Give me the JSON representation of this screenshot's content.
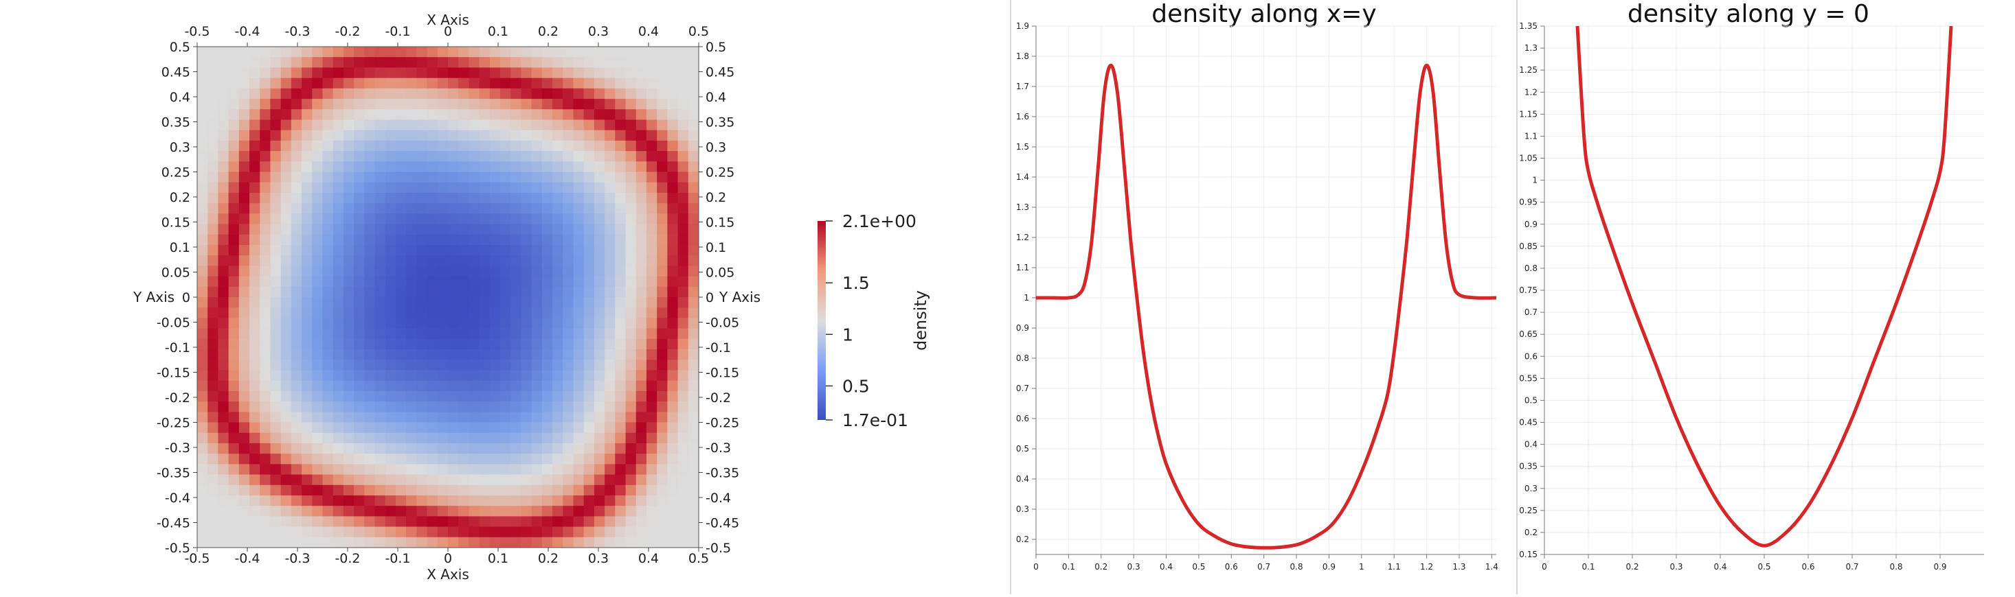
{
  "chart_data": [
    {
      "type": "heatmap",
      "xlabel": "X Axis",
      "ylabel": "Y Axis",
      "xlim": [
        -0.5,
        0.5
      ],
      "ylim": [
        -0.5,
        0.5
      ],
      "x_ticks": [
        "-0.5",
        "-0.4",
        "-0.3",
        "-0.2",
        "-0.1",
        "0",
        "0.1",
        "0.2",
        "0.3",
        "0.4",
        "0.5"
      ],
      "y_ticks": [
        "0.5",
        "0.45",
        "0.4",
        "0.35",
        "0.3",
        "0.25",
        "0.2",
        "0.15",
        "0.1",
        "0.05",
        "0",
        "-0.05",
        "-0.1",
        "-0.15",
        "-0.2",
        "-0.25",
        "-0.3",
        "-0.35",
        "-0.4",
        "-0.45",
        "-0.5"
      ],
      "colorbar": {
        "title": "density",
        "labels": [
          "2.1e+00",
          "1.5",
          "1",
          "0.5",
          "1.7e-01"
        ],
        "range": [
          0.17,
          2.1
        ],
        "colors": {
          "low": "#3b4cc0",
          "mid": "#dddddd",
          "high": "#b40426"
        }
      },
      "features": {
        "center_min_density": 0.17,
        "ring_max_density": 2.1,
        "corner_density": 1.0
      }
    },
    {
      "type": "line",
      "title": "density along x=y",
      "xlabel": "",
      "ylabel": "",
      "xlim": [
        0,
        1.414
      ],
      "ylim": [
        0.15,
        1.9
      ],
      "x_ticks": [
        "0",
        "0.1",
        "0.2",
        "0.3",
        "0.4",
        "0.5",
        "0.6",
        "0.7",
        "0.8",
        "0.9",
        "1",
        "1.1",
        "1.2",
        "1.3",
        "1.4"
      ],
      "y_ticks": [
        "0.2",
        "0.3",
        "0.4",
        "0.5",
        "0.6",
        "0.7",
        "0.8",
        "0.9",
        "1",
        "1.1",
        "1.2",
        "1.3",
        "1.4",
        "1.5",
        "1.6",
        "1.7",
        "1.8",
        "1.9"
      ],
      "grid": true,
      "line_color": "#d62728",
      "x": [
        0,
        0.05,
        0.1,
        0.13,
        0.15,
        0.17,
        0.19,
        0.21,
        0.23,
        0.25,
        0.27,
        0.29,
        0.31,
        0.33,
        0.35,
        0.37,
        0.4,
        0.45,
        0.5,
        0.55,
        0.6,
        0.65,
        0.707,
        0.76,
        0.81,
        0.86,
        0.91,
        0.96,
        1.01,
        1.05,
        1.08,
        1.1,
        1.12,
        1.14,
        1.16,
        1.18,
        1.2,
        1.22,
        1.24,
        1.26,
        1.28,
        1.3,
        1.35,
        1.414
      ],
      "y": [
        1.0,
        1.0,
        1.0,
        1.01,
        1.05,
        1.18,
        1.42,
        1.68,
        1.77,
        1.68,
        1.45,
        1.2,
        1.0,
        0.82,
        0.68,
        0.57,
        0.45,
        0.33,
        0.25,
        0.21,
        0.185,
        0.175,
        0.172,
        0.175,
        0.185,
        0.21,
        0.25,
        0.33,
        0.45,
        0.57,
        0.68,
        0.82,
        1.0,
        1.2,
        1.45,
        1.68,
        1.77,
        1.68,
        1.42,
        1.18,
        1.05,
        1.01,
        1.0,
        1.0
      ]
    },
    {
      "type": "line",
      "title": "density along y = 0",
      "xlabel": "",
      "ylabel": "",
      "xlim": [
        0,
        1
      ],
      "ylim": [
        0.15,
        1.35
      ],
      "x_ticks": [
        "0",
        "0.1",
        "0.2",
        "0.3",
        "0.4",
        "0.5",
        "0.6",
        "0.7",
        "0.8",
        "0.9"
      ],
      "y_ticks": [
        "0.15",
        "0.2",
        "0.25",
        "0.3",
        "0.35",
        "0.4",
        "0.45",
        "0.5",
        "0.55",
        "0.6",
        "0.65",
        "0.7",
        "0.75",
        "0.8",
        "0.85",
        "0.9",
        "0.95",
        "1",
        "1.05",
        "1.1",
        "1.15",
        "1.2",
        "1.25",
        "1.3",
        "1.35"
      ],
      "grid": true,
      "line_color": "#d62728",
      "x": [
        0.075,
        0.09,
        0.1,
        0.12,
        0.15,
        0.2,
        0.25,
        0.3,
        0.35,
        0.4,
        0.45,
        0.5,
        0.55,
        0.6,
        0.65,
        0.7,
        0.75,
        0.8,
        0.85,
        0.88,
        0.9,
        0.91,
        0.925
      ],
      "y": [
        1.35,
        1.1,
        1.02,
        0.95,
        0.86,
        0.72,
        0.59,
        0.46,
        0.35,
        0.26,
        0.2,
        0.17,
        0.2,
        0.26,
        0.35,
        0.46,
        0.59,
        0.72,
        0.86,
        0.95,
        1.02,
        1.1,
        1.35
      ]
    }
  ]
}
